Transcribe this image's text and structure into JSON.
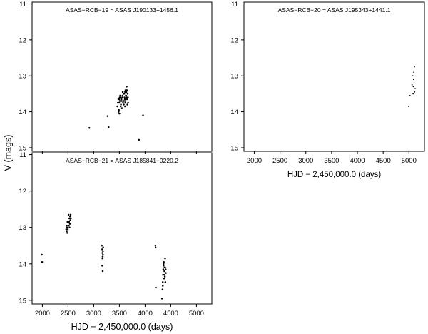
{
  "figure": {
    "ylabel": "V (mags)",
    "xlabel": "HJD − 2,450,000.0 (days)"
  },
  "chart_data": [
    {
      "type": "scatter",
      "title": "ASAS−RCB−19 = ASAS J190133+1456.1",
      "xlabel": "",
      "ylabel": "V (mags)",
      "xlim": [
        1800,
        5300
      ],
      "ylim": [
        15.1,
        10.95
      ],
      "y_inverted": true,
      "xticks": [
        2000,
        2500,
        3000,
        3500,
        4000,
        4500,
        5000
      ],
      "yticks": [
        11,
        12,
        13,
        14,
        15
      ],
      "show_xtick_labels": false,
      "series": [
        {
          "x": [
            2915,
            3290,
            3270,
            3880,
            3960,
            3460,
            3470,
            3490,
            3500,
            3510,
            3520,
            3530,
            3540,
            3550,
            3560,
            3570,
            3580,
            3590,
            3600,
            3610,
            3620,
            3630,
            3640,
            3650,
            3660,
            3670,
            3480,
            3505,
            3525,
            3545,
            3565,
            3585,
            3605,
            3625,
            3645,
            3665,
            3495,
            3515,
            3535,
            3555,
            3575,
            3595,
            3615,
            3635,
            3655,
            3485,
            3640,
            3620,
            3610,
            3500
          ],
          "y": [
            14.45,
            14.43,
            14.12,
            14.78,
            14.1,
            13.85,
            13.75,
            13.95,
            14.05,
            13.7,
            13.6,
            13.8,
            13.65,
            13.9,
            13.55,
            13.75,
            13.5,
            13.7,
            13.6,
            13.85,
            13.4,
            13.55,
            13.3,
            13.65,
            13.5,
            13.75,
            13.65,
            13.6,
            13.85,
            13.7,
            13.45,
            13.8,
            13.65,
            13.55,
            13.4,
            13.6,
            13.75,
            13.55,
            13.9,
            13.6,
            13.7,
            13.5,
            13.75,
            13.45,
            13.8,
            14.0,
            13.6,
            13.7,
            13.45,
            13.65
          ]
        }
      ]
    },
    {
      "type": "scatter",
      "title": "ASAS−RCB−20 = ASAS J195343+1441.1",
      "xlabel": "HJD − 2,450,000.0 (days)",
      "ylabel": "",
      "xlim": [
        1800,
        5300
      ],
      "ylim": [
        15.1,
        10.95
      ],
      "y_inverted": true,
      "xticks": [
        2000,
        2500,
        3000,
        3500,
        4000,
        4500,
        5000
      ],
      "yticks": [
        11,
        12,
        13,
        14,
        15
      ],
      "show_xtick_labels": true,
      "series": [
        {
          "x": [
            4995,
            5020,
            5060,
            5075,
            5085,
            5090,
            5095,
            5105,
            5110,
            5120,
            5100,
            5080
          ],
          "y": [
            13.85,
            13.55,
            13.25,
            13.0,
            13.3,
            13.1,
            12.9,
            12.75,
            13.45,
            13.35,
            13.2,
            13.5
          ]
        }
      ]
    },
    {
      "type": "scatter",
      "title": "ASAS−RCB−21 = ASAS J185841−0220.2",
      "xlabel": "HJD − 2,450,000.0 (days)",
      "ylabel": "",
      "xlim": [
        1800,
        5300
      ],
      "ylim": [
        15.1,
        10.95
      ],
      "y_inverted": true,
      "xticks": [
        2000,
        2500,
        3000,
        3500,
        4000,
        4500,
        5000
      ],
      "yticks": [
        11,
        12,
        13,
        14,
        15
      ],
      "show_xtick_labels": true,
      "series": [
        {
          "x": [
            1990,
            1995,
            2465,
            2470,
            2475,
            2480,
            2490,
            2495,
            2500,
            2510,
            2520,
            2525,
            2530,
            2535,
            2540,
            2545,
            2550,
            2555,
            2485,
            2515,
            3160,
            3165,
            3170,
            3175,
            3180,
            3185,
            3170,
            3165,
            3175,
            3180,
            4200,
            4205,
            4210,
            4330,
            4340,
            4345,
            4350,
            4355,
            4360,
            4365,
            4370,
            4375,
            4380,
            4385,
            4390,
            4395,
            4400,
            4405,
            4345,
            4360,
            4375,
            4390
          ],
          "y": [
            13.75,
            13.95,
            13.05,
            12.95,
            13.1,
            13.0,
            12.85,
            13.05,
            12.95,
            12.65,
            12.85,
            12.75,
            13.0,
            12.9,
            12.7,
            12.8,
            12.65,
            12.75,
            13.15,
            12.95,
            13.5,
            13.6,
            13.7,
            13.8,
            13.65,
            13.55,
            13.85,
            14.05,
            14.2,
            13.75,
            13.5,
            13.55,
            14.65,
            14.95,
            14.7,
            14.5,
            14.3,
            14.15,
            14.05,
            13.95,
            14.4,
            14.2,
            14.1,
            14.35,
            13.85,
            14.5,
            14.15,
            14.25,
            14.6,
            14.0,
            14.3,
            14.1
          ]
        }
      ]
    }
  ]
}
